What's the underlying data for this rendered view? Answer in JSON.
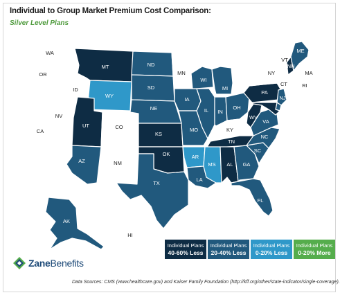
{
  "title": "Individual to Group Market Premium Cost Comparison:",
  "subtitle": "Silver Level Plans",
  "colors": {
    "c40_60": "#0e2c44",
    "c20_40": "#21597d",
    "c0_20": "#2f98c9",
    "more": "#55ad4c",
    "none": "#ffffff",
    "outline": "#c9c9c9"
  },
  "legend": [
    {
      "key": "c40_60",
      "line1": "Individual Plans",
      "line2": "40-60% Less"
    },
    {
      "key": "c20_40",
      "line1": "Individual Plans",
      "line2": "20-40% Less"
    },
    {
      "key": "c0_20",
      "line1": "Individual Plans",
      "line2": "0-20% Less"
    },
    {
      "key": "more",
      "line1": "Individual Plans",
      "line2": "0-20% More"
    }
  ],
  "states": [
    {
      "abbr": "WA",
      "cat": "none"
    },
    {
      "abbr": "OR",
      "cat": "none"
    },
    {
      "abbr": "CA",
      "cat": "none"
    },
    {
      "abbr": "ID",
      "cat": "none"
    },
    {
      "abbr": "NV",
      "cat": "none"
    },
    {
      "abbr": "MT",
      "cat": "c40_60"
    },
    {
      "abbr": "WY",
      "cat": "c0_20"
    },
    {
      "abbr": "UT",
      "cat": "c40_60"
    },
    {
      "abbr": "CO",
      "cat": "none"
    },
    {
      "abbr": "AZ",
      "cat": "c20_40"
    },
    {
      "abbr": "NM",
      "cat": "none"
    },
    {
      "abbr": "ND",
      "cat": "c20_40"
    },
    {
      "abbr": "SD",
      "cat": "c20_40"
    },
    {
      "abbr": "NE",
      "cat": "c20_40"
    },
    {
      "abbr": "KS",
      "cat": "c40_60"
    },
    {
      "abbr": "OK",
      "cat": "c40_60"
    },
    {
      "abbr": "TX",
      "cat": "c20_40"
    },
    {
      "abbr": "MN",
      "cat": "none"
    },
    {
      "abbr": "IA",
      "cat": "c20_40"
    },
    {
      "abbr": "MO",
      "cat": "c20_40"
    },
    {
      "abbr": "AR",
      "cat": "c0_20"
    },
    {
      "abbr": "LA",
      "cat": "c20_40"
    },
    {
      "abbr": "WI",
      "cat": "c20_40"
    },
    {
      "abbr": "IL",
      "cat": "c20_40"
    },
    {
      "abbr": "MI",
      "cat": "c20_40"
    },
    {
      "abbr": "IN",
      "cat": "c20_40"
    },
    {
      "abbr": "OH",
      "cat": "c20_40"
    },
    {
      "abbr": "KY",
      "cat": "none"
    },
    {
      "abbr": "TN",
      "cat": "c40_60"
    },
    {
      "abbr": "MS",
      "cat": "c0_20"
    },
    {
      "abbr": "AL",
      "cat": "c40_60"
    },
    {
      "abbr": "GA",
      "cat": "c20_40"
    },
    {
      "abbr": "FL",
      "cat": "c20_40"
    },
    {
      "abbr": "SC",
      "cat": "c20_40"
    },
    {
      "abbr": "NC",
      "cat": "c20_40"
    },
    {
      "abbr": "VA",
      "cat": "c20_40"
    },
    {
      "abbr": "WV",
      "cat": "c40_60"
    },
    {
      "abbr": "PA",
      "cat": "c40_60"
    },
    {
      "abbr": "NY",
      "cat": "none"
    },
    {
      "abbr": "NJ",
      "cat": "c20_40"
    },
    {
      "abbr": "DE",
      "cat": "c20_40"
    },
    {
      "abbr": "MD",
      "cat": "c40_60"
    },
    {
      "abbr": "VT",
      "cat": "none"
    },
    {
      "abbr": "NH",
      "cat": "c40_60"
    },
    {
      "abbr": "ME",
      "cat": "c20_40"
    },
    {
      "abbr": "MA",
      "cat": "none"
    },
    {
      "abbr": "CT",
      "cat": "none"
    },
    {
      "abbr": "RI",
      "cat": "none"
    },
    {
      "abbr": "AK",
      "cat": "c20_40"
    },
    {
      "abbr": "HI",
      "cat": "none"
    }
  ],
  "logo": {
    "bold": "Zane",
    "light": "Benefits"
  },
  "source": "Data Sources: CMS (www.healthcare.gov) and Kaiser Family Foundation (http://kff.org/other/state-indicator/single-coverage)."
}
